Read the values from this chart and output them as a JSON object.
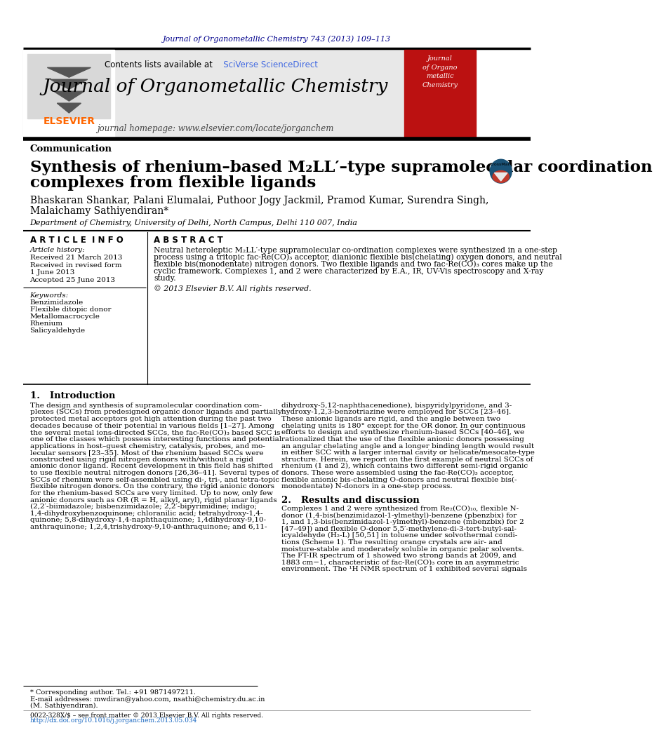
{
  "page_bg": "#ffffff",
  "header_journal_text": "Journal of Organometallic Chemistry 743 (2013) 109–113",
  "header_journal_color": "#00008B",
  "journal_header_bg": "#e8e8e8",
  "journal_title": "Journal of Organometallic Chemistry",
  "journal_homepage": "journal homepage: www.elsevier.com/locate/jorganchem",
  "contents_text": "Contents lists available at ",
  "contents_link": "SciVerse ScienceDirect",
  "elsevier_color": "#FF6600",
  "article_type": "Communication",
  "paper_title_line1": "Synthesis of rhenium–based M₂LL′–type supramolecular coordination",
  "paper_title_line2": "complexes from flexible ligands",
  "authors": "Bhaskaran Shankar, Palani Elumalai, Puthoor Jogy Jackmil, Pramod Kumar, Surendra Singh,",
  "authors2": "Malaichamy Sathiyendiran*",
  "affiliation": "Department of Chemistry, University of Delhi, North Campus, Delhi 110 007, India",
  "article_info_title": "A R T I C L E  I N F O",
  "abstract_title": "A B S T R A C T",
  "article_history": "Article history:",
  "received": "Received 21 March 2013",
  "received_revised": "Received in revised form",
  "date1": "1 June 2013",
  "accepted": "Accepted 25 June 2013",
  "keywords_title": "Keywords:",
  "keywords": [
    "Benzimidazole",
    "Flexible ditopic donor",
    "Metallomacrocycle",
    "Rhenium",
    "Salicyaldehyde"
  ],
  "abstract_text": "Neutral heteroleptic M₂LL′-type supramolecular co-ordination complexes were synthesized in a one-step\nprocess using a tritopic fac-Re(CO)₃ acceptor, dianionic flexible bis(chelating) oxygen donors, and neutral\nflexible bis(monodentate) nitrogen donors. Two flexible ligands and two fac-Re(CO)₃ cores make up the\ncyclic framework. Complexes 1, and 2 were characterized by E.A., IR, UV-Vis spectroscopy and X-ray\nstudy.",
  "copyright_text": "© 2013 Elsevier B.V. All rights reserved.",
  "intro_title": "1.   Introduction",
  "intro_col1_lines": [
    "The design and synthesis of supramolecular coordination com-",
    "plexes (SCCs) from predesigned organic donor ligands and partially",
    "protected metal acceptors got high attention during the past two",
    "decades because of their potential in various fields [1–27]. Among",
    "the several metal ions-directed SCCs, the fac-Re(CO)₃ based SCC is",
    "one of the classes which possess interesting functions and potential",
    "applications in host–guest chemistry, catalysis, probes, and mo-",
    "lecular sensors [23–35]. Most of the rhenium based SCCs were",
    "constructed using rigid nitrogen donors with/without a rigid",
    "anionic donor ligand. Recent development in this field has shifted",
    "to use flexible neutral nitrogen donors [26,36–41]. Several types of",
    "SCCs of rhenium were self-assembled using di-, tri-, and tetra-topic",
    "flexible nitrogen donors. On the contrary, the rigid anionic donors",
    "for the rhenium-based SCCs are very limited. Up to now, only few",
    "anionic donors such as OR (R = H, alkyl, aryl), rigid planar ligands",
    "(2,2′-biimidazole; bisbenzimidazole; 2,2′-bipyrimidine; indigo;",
    "1,4-dihydroxybenzoquinone; chloranilic acid; tetrahydroxy-1,4-",
    "quinone; 5,8-dihydroxy-1,4-naphthaquinone; 1,4dihydroxy-9,10-",
    "anthraquinone; 1,2,4,trishydroxy-9,10-anthraquinone; and 6,11-"
  ],
  "intro_col2_lines": [
    "dihydroxy-5,12-naphthacenedione), bispyridylpyridone, and 3-",
    "hydroxy-1,2,3-benzotriazine were employed for SCCs [23–46].",
    "These anionic ligands are rigid, and the angle between two",
    "chelating units is 180° except for the OR donor. In our continuous",
    "efforts to design and synthesize rhenium-based SCCs [40–46], we",
    "rationalized that the use of the flexible anionic donors possessing",
    "an angular chelating angle and a longer binding length would result",
    "in either SCC with a larger internal cavity or helicate/mesocate-type",
    "structure. Herein, we report on the first example of neutral SCCs of",
    "rhenium (1 and 2), which contains two different semi-rigid organic",
    "donors. These were assembled using the fac-Re(CO)₃ acceptor,",
    "flexible anionic bis-chelating O-donors and neutral flexible bis(-",
    "monodentate) N-donors in a one-step process."
  ],
  "results_title": "2.   Results and discussion",
  "results_col2_lines": [
    "Complexes 1 and 2 were synthesized from Re₂(CO)₁₀, flexible N-",
    "donor (1,4-bis(benzimidazol-1-ylmethyl)-benzene (pbenzbix) for",
    "1, and 1,3-bis(benzimidazol-1-ylmethyl)-benzene (mbenzbix) for 2",
    "[47–49]) and flexible O-donor 5,5′-methylene-di-3-tert-butyl-sal-",
    "icyaldehyde (H₂-L) [50,51] in toluene under solvothermal condi-",
    "tions (Scheme 1). The resulting orange crystals are air- and",
    "moisture-stable and moderately soluble in organic polar solvents.",
    "The FT-IR spectrum of 1 showed two strong bands at 2009, and",
    "1883 cm−1, characteristic of fac-Re(CO)₃ core in an asymmetric",
    "environment. The ¹H NMR spectrum of 1 exhibited several signals"
  ],
  "footnote_star": "* Corresponding author. Tel.: +91 9871497211.",
  "footnote_email": "E-mail addresses: mwdiran@yahoo.com, nsathi@chemistry.du.ac.in",
  "footnote_m": "(M. Sathiyendiran).",
  "footer_issn": "0022-328X/$ – see front matter © 2013 Elsevier B.V. All rights reserved.",
  "footer_doi": "http://dx.doi.org/10.1016/j.jorganchem.2013.05.034"
}
